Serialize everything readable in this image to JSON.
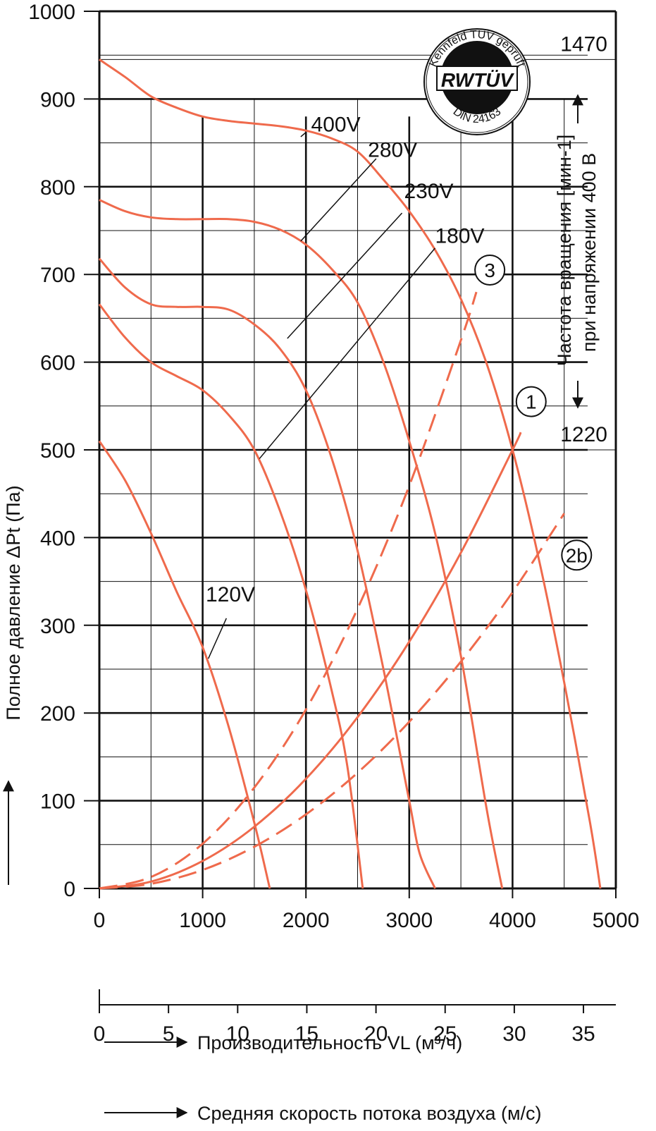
{
  "chart_data": {
    "type": "line",
    "title": "",
    "ylabel": "Полное давление ΔPt (Па)",
    "xlabel": "Производительность VL (м³/ч)",
    "xlabel2": "Средняя скорость потока воздуха (м/с)",
    "xlim": [
      0,
      5000
    ],
    "ylim": [
      0,
      1000
    ],
    "x_ticks": [
      "0",
      "1000",
      "2000",
      "3000",
      "4000",
      "5000"
    ],
    "y_ticks": [
      "0",
      "100",
      "200",
      "300",
      "400",
      "500",
      "600",
      "700",
      "800",
      "900",
      "1000"
    ],
    "x2_ticks": [
      "0",
      "5",
      "10",
      "15",
      "20",
      "25",
      "30",
      "35"
    ],
    "x2_tick_values": [
      0,
      5,
      10,
      15,
      20,
      25,
      30,
      35
    ],
    "x2_flow_per_ms": 133.9,
    "grid": true,
    "series": [
      {
        "name": "400V",
        "x": [
          0,
          250,
          500,
          750,
          1000,
          1250,
          1500,
          1750,
          2000,
          2250,
          2500,
          2750,
          3000,
          3250,
          3500,
          3750,
          4000,
          4250,
          4500,
          4750,
          4850
        ],
        "y": [
          945,
          925,
          903,
          890,
          880,
          875,
          872,
          869,
          864,
          855,
          840,
          808,
          772,
          728,
          672,
          598,
          500,
          378,
          235,
          75,
          0
        ]
      },
      {
        "name": "280V",
        "x": [
          0,
          250,
          500,
          750,
          1000,
          1250,
          1500,
          1750,
          2000,
          2250,
          2500,
          2750,
          3000,
          3250,
          3500,
          3750,
          3900
        ],
        "y": [
          785,
          772,
          765,
          763,
          763,
          763,
          760,
          751,
          734,
          706,
          668,
          600,
          510,
          405,
          265,
          90,
          0
        ]
      },
      {
        "name": "230V",
        "x": [
          0,
          250,
          500,
          750,
          1000,
          1250,
          1500,
          1750,
          2000,
          2250,
          2500,
          2750,
          3000,
          3100,
          3250
        ],
        "y": [
          718,
          685,
          666,
          663,
          663,
          660,
          643,
          615,
          568,
          490,
          385,
          250,
          100,
          40,
          0
        ]
      },
      {
        "name": "180V",
        "x": [
          0,
          250,
          500,
          750,
          1000,
          1250,
          1500,
          1750,
          2000,
          2250,
          2400,
          2550
        ],
        "y": [
          666,
          628,
          600,
          584,
          568,
          540,
          500,
          430,
          340,
          225,
          140,
          0
        ]
      },
      {
        "name": "120V",
        "x": [
          0,
          250,
          500,
          750,
          1000,
          1250,
          1500,
          1650
        ],
        "y": [
          510,
          465,
          405,
          338,
          275,
          185,
          75,
          0
        ]
      }
    ],
    "curve_label_positions": {
      "400V": [
        2050,
        863
      ],
      "280V": [
        2600,
        834
      ],
      "230V": [
        2950,
        787
      ],
      "180V": [
        3250,
        736
      ],
      "120V": [
        1030,
        327
      ]
    },
    "leader_lines": [
      {
        "name": "400V",
        "from": [
          2000,
          862
        ],
        "to": [
          1950,
          857
        ]
      },
      {
        "name": "280V",
        "from": [
          2680,
          832
        ],
        "to": [
          1950,
          738
        ]
      },
      {
        "name": "230V",
        "from": [
          2930,
          770
        ],
        "to": [
          1820,
          627
        ]
      },
      {
        "name": "180V",
        "from": [
          3250,
          730
        ],
        "to": [
          1550,
          490
        ]
      },
      {
        "name": "120V",
        "from": [
          1230,
          308
        ],
        "to": [
          1055,
          262
        ]
      }
    ],
    "system_curves": [
      {
        "label": "1",
        "style": "solid",
        "x": [
          0,
          500,
          1000,
          1500,
          2000,
          2500,
          3000,
          3500,
          4000,
          4080
        ],
        "y": [
          0,
          7.8,
          31.3,
          70.3,
          125,
          195.3,
          281.3,
          382.8,
          500,
          520
        ]
      },
      {
        "label": "3",
        "style": "dashed",
        "x": [
          0,
          500,
          1000,
          1500,
          2000,
          2500,
          3000,
          3500,
          3650
        ],
        "y": [
          0,
          13,
          51,
          115,
          204,
          319,
          459,
          625,
          680
        ]
      },
      {
        "label": "2b",
        "style": "dashed",
        "x": [
          0,
          500,
          1000,
          1500,
          2000,
          2500,
          3000,
          3500,
          4000,
          4500
        ],
        "y": [
          0,
          5.3,
          21.1,
          47.5,
          84.4,
          131.9,
          190,
          258.6,
          337.7,
          427.5
        ]
      }
    ],
    "circle_label_positions": {
      "1": [
        4180,
        555
      ],
      "3": [
        3780,
        705
      ],
      "2b": [
        4620,
        380
      ]
    },
    "reference_lines": [
      {
        "y": 945,
        "label": "1470"
      },
      {
        "y": 500,
        "label": "1220"
      }
    ],
    "right_axis_label_1": "Частота вращения [мин-1]",
    "right_axis_label_2": "при напряжении 400 В",
    "badge": {
      "top_text": "Kennfeld TÜV geprüft",
      "logo": "RWTÜV",
      "bottom_text": "DIN 24163"
    },
    "colors": {
      "curve": "#ef6a4c",
      "grid": "#111111"
    },
    "legend": "none"
  }
}
